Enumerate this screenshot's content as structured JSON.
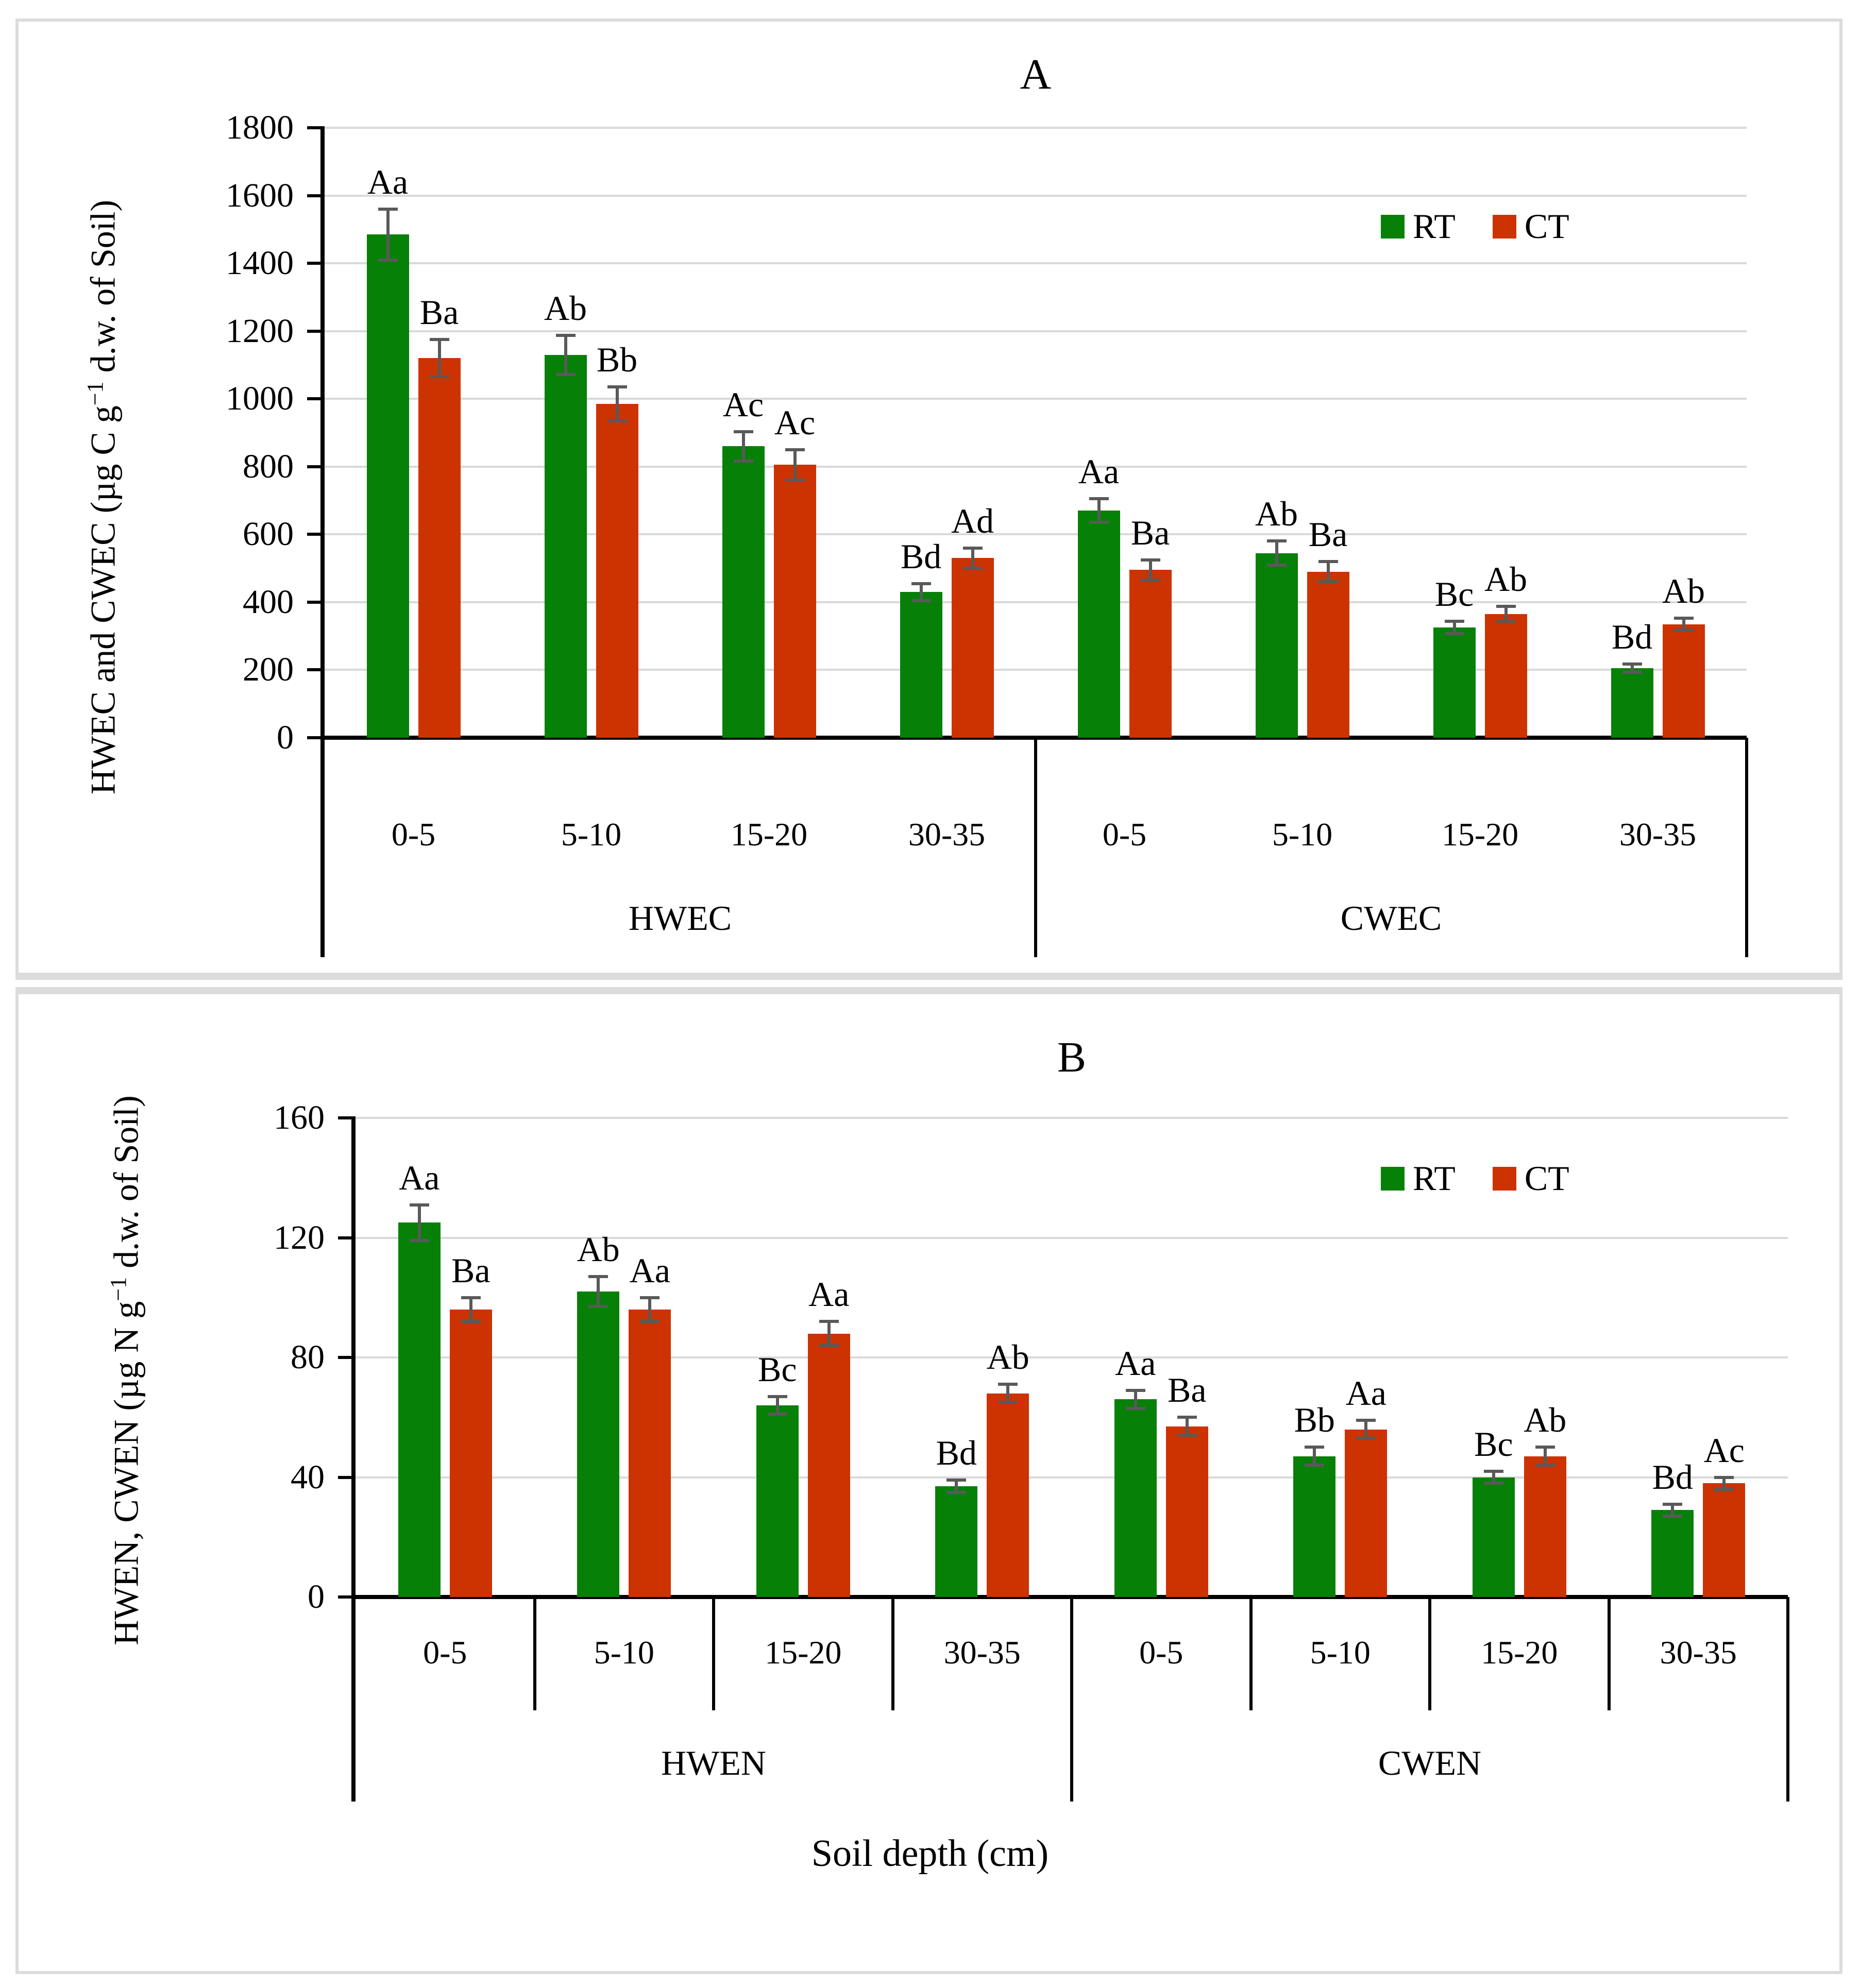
{
  "figure": {
    "xlabel": "Soil depth (cm)",
    "legend": {
      "rt": "RT",
      "ct": "CT"
    },
    "colors": {
      "rt": "#078007",
      "ct": "#cc3300",
      "error_bar": "#595959",
      "gridline": "#d9d9d9",
      "axis": "#000000",
      "frame": "#dcdcdc"
    }
  },
  "chart_data": [
    {
      "type": "bar",
      "title": "A",
      "ylabel_parts": {
        "pre": "HWEC and CWEC (µg C g",
        "sup": "−1",
        "post": " d.w. of Soil)"
      },
      "ylim": [
        0,
        1800
      ],
      "ytick_step": 200,
      "ytick_labels": [
        "1800",
        "1600",
        "1400",
        "1200",
        "1000",
        "800",
        "600",
        "400",
        "200",
        "0"
      ],
      "grid": true,
      "legend_position": "top-right",
      "sections": [
        {
          "name": "HWEC",
          "categories": [
            "0-5",
            "5-10",
            "15-20",
            "30-35"
          ],
          "series": [
            {
              "name": "RT",
              "values": [
                1485,
                1130,
                860,
                430
              ],
              "errors": [
                75,
                58,
                43,
                25
              ],
              "letters": [
                "Aa",
                "Ab",
                "Ac",
                "Bd"
              ]
            },
            {
              "name": "CT",
              "values": [
                1120,
                985,
                805,
                530
              ],
              "errors": [
                55,
                50,
                45,
                30
              ],
              "letters": [
                "Ba",
                "Bb",
                "Ac",
                "Ad"
              ]
            }
          ]
        },
        {
          "name": "CWEC",
          "categories": [
            "0-5",
            "5-10",
            "15-20",
            "30-35"
          ],
          "series": [
            {
              "name": "RT",
              "values": [
                670,
                545,
                325,
                205
              ],
              "errors": [
                35,
                35,
                18,
                12
              ],
              "letters": [
                "Aa",
                "Ab",
                "Bc",
                "Bd"
              ]
            },
            {
              "name": "CT",
              "values": [
                495,
                490,
                365,
                335
              ],
              "errors": [
                30,
                30,
                22,
                18
              ],
              "letters": [
                "Ba",
                "Ba",
                "Ab",
                "Ab"
              ]
            }
          ]
        }
      ]
    },
    {
      "type": "bar",
      "title": "B",
      "ylabel_parts": {
        "pre": "HWEN, CWEN (µg N g",
        "sup": "−1",
        "post": " d.w. of Soil)"
      },
      "ylim": [
        0,
        160
      ],
      "ytick_step": 40,
      "ytick_labels": [
        "160",
        "120",
        "80",
        "40",
        "0"
      ],
      "grid": true,
      "legend_position": "top-right",
      "xlabel": "Soil depth (cm)",
      "sections": [
        {
          "name": "HWEN",
          "categories": [
            "0-5",
            "5-10",
            "15-20",
            "30-35"
          ],
          "series": [
            {
              "name": "RT",
              "values": [
                125,
                102,
                64,
                37
              ],
              "errors": [
                6,
                5,
                3,
                2
              ],
              "letters": [
                "Aa",
                "Ab",
                "Bc",
                "Bd"
              ]
            },
            {
              "name": "CT",
              "values": [
                96,
                96,
                88,
                68
              ],
              "errors": [
                4,
                4,
                4,
                3
              ],
              "letters": [
                "Ba",
                "Aa",
                "Aa",
                "Ab"
              ]
            }
          ]
        },
        {
          "name": "CWEN",
          "categories": [
            "0-5",
            "5-10",
            "15-20",
            "30-35"
          ],
          "series": [
            {
              "name": "RT",
              "values": [
                66,
                47,
                40,
                29
              ],
              "errors": [
                3,
                3,
                2,
                2
              ],
              "letters": [
                "Aa",
                "Bb",
                "Bc",
                "Bd"
              ]
            },
            {
              "name": "CT",
              "values": [
                57,
                56,
                47,
                38
              ],
              "errors": [
                3,
                3,
                3,
                2
              ],
              "letters": [
                "Ba",
                "Aa",
                "Ab",
                "Ac"
              ]
            }
          ]
        }
      ]
    }
  ]
}
